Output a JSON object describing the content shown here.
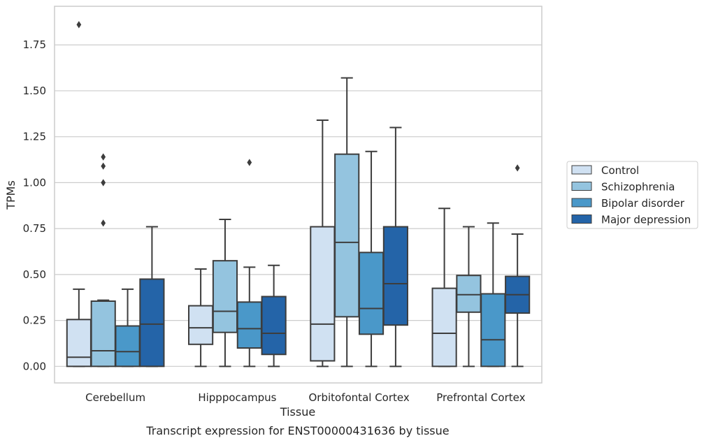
{
  "chart_data": {
    "type": "box",
    "title": "Transcript expression for ENST00000431636 by tissue",
    "xlabel": "Tissue",
    "ylabel": "TPMs",
    "ylim": [
      -0.09,
      1.96
    ],
    "yticks": [
      0.0,
      0.25,
      0.5,
      0.75,
      1.0,
      1.25,
      1.5,
      1.75
    ],
    "ytick_labels": [
      "0.00",
      "0.25",
      "0.50",
      "0.75",
      "1.00",
      "1.25",
      "1.50",
      "1.75"
    ],
    "grid": true,
    "legend_position": "right",
    "categories": [
      "Cerebellum",
      "Hipppocampus",
      "Orbitofontal Cortex",
      "Prefrontal Cortex"
    ],
    "series": [
      {
        "name": "Control",
        "color": "#d0e1f2",
        "boxes": [
          {
            "min": 0.0,
            "q1": 0.0,
            "median": 0.05,
            "q3": 0.255,
            "max": 0.42,
            "outliers": [
              1.86
            ]
          },
          {
            "min": 0.0,
            "q1": 0.12,
            "median": 0.21,
            "q3": 0.33,
            "max": 0.53,
            "outliers": []
          },
          {
            "min": 0.0,
            "q1": 0.03,
            "median": 0.23,
            "q3": 0.76,
            "max": 1.34,
            "outliers": []
          },
          {
            "min": 0.0,
            "q1": 0.0,
            "median": 0.18,
            "q3": 0.425,
            "max": 0.86,
            "outliers": []
          }
        ]
      },
      {
        "name": "Schizophrenia",
        "color": "#94c4df",
        "boxes": [
          {
            "min": 0.0,
            "q1": 0.0,
            "median": 0.085,
            "q3": 0.355,
            "max": 0.36,
            "outliers": [
              0.78,
              1.0,
              1.09,
              1.14
            ]
          },
          {
            "min": 0.0,
            "q1": 0.185,
            "median": 0.3,
            "q3": 0.575,
            "max": 0.8,
            "outliers": []
          },
          {
            "min": 0.0,
            "q1": 0.27,
            "median": 0.675,
            "q3": 1.155,
            "max": 1.57,
            "outliers": []
          },
          {
            "min": 0.0,
            "q1": 0.295,
            "median": 0.39,
            "q3": 0.495,
            "max": 0.76,
            "outliers": []
          }
        ]
      },
      {
        "name": "Bipolar disorder",
        "color": "#4a98c9",
        "boxes": [
          {
            "min": 0.0,
            "q1": 0.0,
            "median": 0.08,
            "q3": 0.22,
            "max": 0.42,
            "outliers": []
          },
          {
            "min": 0.0,
            "q1": 0.1,
            "median": 0.205,
            "q3": 0.35,
            "max": 0.54,
            "outliers": [
              1.11
            ]
          },
          {
            "min": 0.0,
            "q1": 0.175,
            "median": 0.315,
            "q3": 0.62,
            "max": 1.17,
            "outliers": []
          },
          {
            "min": 0.0,
            "q1": 0.0,
            "median": 0.145,
            "q3": 0.395,
            "max": 0.78,
            "outliers": []
          }
        ]
      },
      {
        "name": "Major depression",
        "color": "#2464a8",
        "boxes": [
          {
            "min": 0.0,
            "q1": 0.0,
            "median": 0.23,
            "q3": 0.475,
            "max": 0.76,
            "outliers": []
          },
          {
            "min": 0.0,
            "q1": 0.065,
            "median": 0.18,
            "q3": 0.38,
            "max": 0.55,
            "outliers": []
          },
          {
            "min": 0.0,
            "q1": 0.225,
            "median": 0.45,
            "q3": 0.76,
            "max": 1.3,
            "outliers": []
          },
          {
            "min": 0.0,
            "q1": 0.29,
            "median": 0.39,
            "q3": 0.49,
            "max": 0.72,
            "outliers": [
              1.08
            ]
          }
        ]
      }
    ]
  }
}
